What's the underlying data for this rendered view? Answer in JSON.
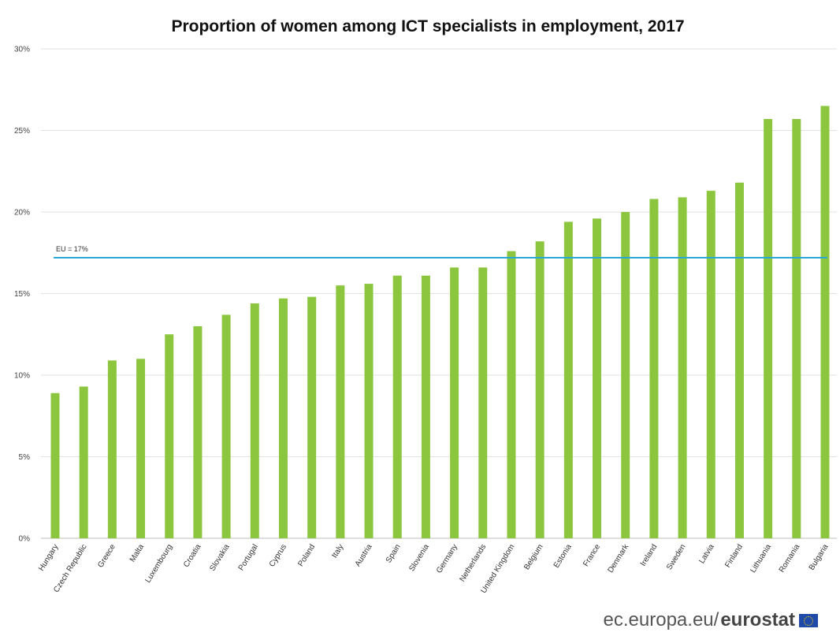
{
  "chart_data": {
    "type": "bar",
    "title": "Proportion of women among ICT specialists in employment, 2017",
    "categories": [
      "Hungary",
      "Czech Republic",
      "Greece",
      "Malta",
      "Luxembourg",
      "Croatia",
      "Slovakia",
      "Portugal",
      "Cyprus",
      "Poland",
      "Italy",
      "Austria",
      "Spain",
      "Slovenia",
      "Germany",
      "Netherlands",
      "United Kingdom",
      "Belgium",
      "Estonia",
      "France",
      "Denmark",
      "Ireland",
      "Sweden",
      "Latvia",
      "Finland",
      "Lithuania",
      "Romania",
      "Bulgaria"
    ],
    "values": [
      8.9,
      9.3,
      10.9,
      11.0,
      12.5,
      13.0,
      13.7,
      14.4,
      14.7,
      14.8,
      15.5,
      15.6,
      16.1,
      16.1,
      16.6,
      16.6,
      17.6,
      18.2,
      19.4,
      19.6,
      20.0,
      20.8,
      20.9,
      21.3,
      21.8,
      25.7,
      25.7,
      26.5
    ],
    "ylim": [
      0,
      30
    ],
    "yticks": [
      "0%",
      "5%",
      "10%",
      "15%",
      "20%",
      "25%",
      "30%"
    ],
    "grid": true,
    "legend": "none",
    "bar_color": "#8cc63f",
    "reference_line": {
      "value": 17.2,
      "label": "EU = 17%",
      "color": "#29a8d8"
    }
  },
  "footer": {
    "site": "ec.europa.eu/",
    "brand": "eurostat"
  }
}
